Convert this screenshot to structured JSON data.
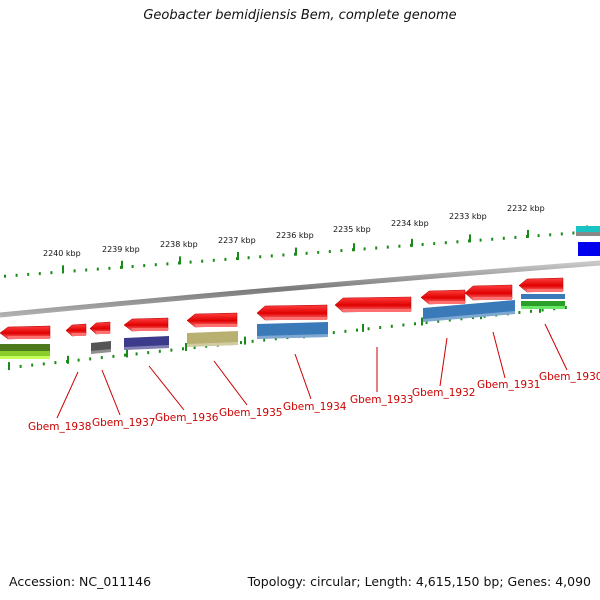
{
  "title": "Geobacter bemidjiensis Bem, complete genome",
  "accession": "Accession: NC_011146",
  "summary": "Topology: circular; Length: 4,615,150 bp; Genes: 4,090",
  "colors": {
    "forward": "#ee0000",
    "backbone": "#8a8a8a",
    "ticks": "#1a8a1a",
    "label": "#cc0000"
  },
  "kbp_labels": [
    "2240 kbp",
    "2239 kbp",
    "2238 kbp",
    "2237 kbp",
    "2236 kbp",
    "2235 kbp",
    "2234 kbp",
    "2233 kbp",
    "2232 kbp"
  ],
  "genes": [
    {
      "name": "Gbem_1938",
      "cog_color": "#5a8a1a"
    },
    {
      "name": "Gbem_1937",
      "cog_color": "#555555"
    },
    {
      "name": "Gbem_1936",
      "cog_color": "#3c3a8a"
    },
    {
      "name": "Gbem_1935",
      "cog_color": "#b8b070"
    },
    {
      "name": "Gbem_1934",
      "cog_color": "#3a7ab8"
    },
    {
      "name": "Gbem_1933",
      "cog_color": ""
    },
    {
      "name": "Gbem_1932",
      "cog_color": "#3a7ab8"
    },
    {
      "name": "Gbem_1931",
      "cog_color": ""
    },
    {
      "name": "Gbem_1930",
      "cog_color": "#3a7ab8"
    }
  ]
}
